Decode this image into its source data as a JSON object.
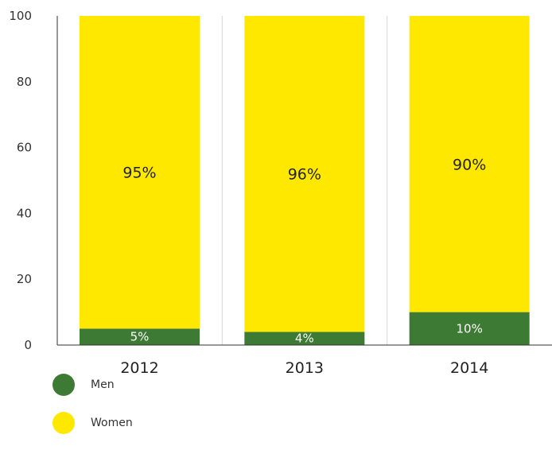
{
  "chart_data": {
    "type": "bar",
    "stacked": true,
    "categories": [
      "2012",
      "2013",
      "2014"
    ],
    "series": [
      {
        "name": "Men",
        "values": [
          5,
          4,
          10
        ],
        "labels": [
          "5%",
          "4%",
          "10%"
        ],
        "color": "#3d7a33"
      },
      {
        "name": "Women",
        "values": [
          95,
          96,
          90
        ],
        "labels": [
          "95%",
          "96%",
          "90%"
        ],
        "color": "#ffe800"
      }
    ],
    "yticks": [
      "0",
      "20",
      "40",
      "60",
      "80",
      "100"
    ],
    "ylim": [
      0,
      100
    ],
    "grid": false,
    "legend": "bottom-left"
  }
}
